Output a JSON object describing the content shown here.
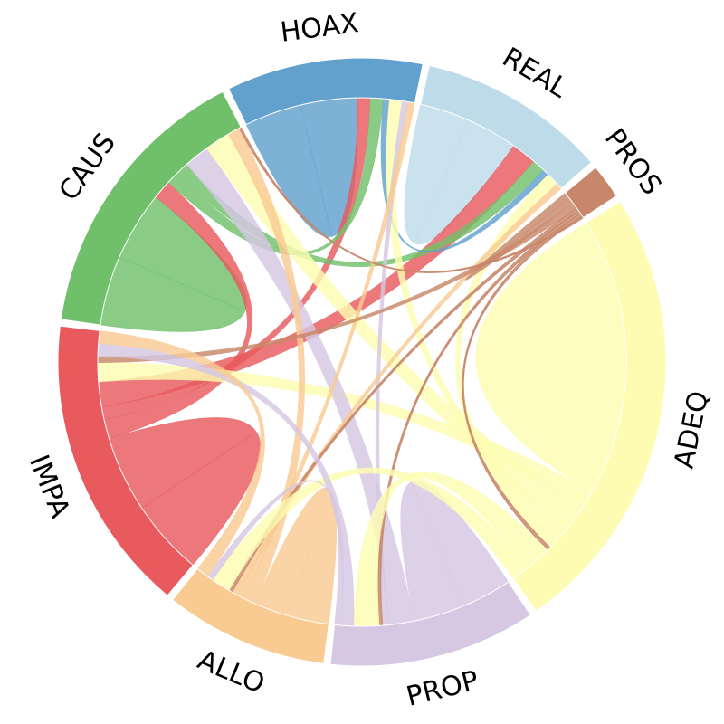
{
  "chart_data": {
    "type": "chord",
    "groups": [
      {
        "key": "CAUS",
        "label": "CAUS",
        "color": "#70bf6a"
      },
      {
        "key": "HOAX",
        "label": "HOAX",
        "color": "#62a0cd"
      },
      {
        "key": "REAL",
        "label": "REAL",
        "color": "#bedbea"
      },
      {
        "key": "PROS",
        "label": "PROS",
        "color": "#c8876a"
      },
      {
        "key": "ADEQ",
        "label": "ADEQ",
        "color": "#fefcb2"
      },
      {
        "key": "PROP",
        "label": "PROP",
        "color": "#d6c7e3"
      },
      {
        "key": "ALLO",
        "label": "ALLO",
        "color": "#f9cb92"
      },
      {
        "key": "IMPA",
        "label": "IMPA",
        "color": "#e85a5e"
      }
    ],
    "ribbons": [
      {
        "from": "CAUS",
        "to": "CAUS",
        "value": 11,
        "color": "#70bf6a"
      },
      {
        "from": "HOAX",
        "to": "HOAX",
        "value": 9,
        "color": "#62a0cd"
      },
      {
        "from": "REAL",
        "to": "REAL",
        "value": 8,
        "color": "#bedbea"
      },
      {
        "from": "ADEQ",
        "to": "ADEQ",
        "value": 22,
        "color": "#fefcb2"
      },
      {
        "from": "PROP",
        "to": "PROP",
        "value": 8,
        "color": "#d6c7e3"
      },
      {
        "from": "ALLO",
        "to": "ALLO",
        "value": 6,
        "color": "#f9cb92"
      },
      {
        "from": "IMPA",
        "to": "IMPA",
        "value": 12,
        "color": "#e85a5e"
      },
      {
        "from": "IMPA",
        "to": "CAUS",
        "value": 3,
        "color": "#e85a5e"
      },
      {
        "from": "IMPA",
        "to": "HOAX",
        "value": 2,
        "color": "#e85a5e"
      },
      {
        "from": "IMPA",
        "to": "REAL",
        "value": 4,
        "color": "#e85a5e"
      },
      {
        "from": "IMPA",
        "to": "ADEQ",
        "value": 3,
        "color": "#fefcb2"
      },
      {
        "from": "CAUS",
        "to": "HOAX",
        "value": 2,
        "color": "#70bf6a"
      },
      {
        "from": "CAUS",
        "to": "REAL",
        "value": 2,
        "color": "#70bf6a"
      },
      {
        "from": "CAUS",
        "to": "PROP",
        "value": 4,
        "color": "#d6c7e3"
      },
      {
        "from": "CAUS",
        "to": "ADEQ",
        "value": 4,
        "color": "#fefcb2"
      },
      {
        "from": "CAUS",
        "to": "ALLO",
        "value": 2,
        "color": "#f9cb92"
      },
      {
        "from": "HOAX",
        "to": "REAL",
        "value": 1,
        "color": "#62a0cd"
      },
      {
        "from": "HOAX",
        "to": "ADEQ",
        "value": 2,
        "color": "#fefcb2"
      },
      {
        "from": "HOAX",
        "to": "PROP",
        "value": 1,
        "color": "#d6c7e3"
      },
      {
        "from": "HOAX",
        "to": "ALLO",
        "value": 1,
        "color": "#f9cb92"
      },
      {
        "from": "REAL",
        "to": "ADEQ",
        "value": 2,
        "color": "#fefcb2"
      },
      {
        "from": "REAL",
        "to": "ALLO",
        "value": 1,
        "color": "#f9cb92"
      },
      {
        "from": "PROS",
        "to": "PROS",
        "value": 1,
        "color": "#c8876a"
      },
      {
        "from": "PROS",
        "to": "IMPA",
        "value": 1,
        "color": "#c8876a"
      },
      {
        "from": "PROS",
        "to": "ALLO",
        "value": 0.5,
        "color": "#c8876a"
      },
      {
        "from": "PROS",
        "to": "PROP",
        "value": 0.5,
        "color": "#c8876a"
      },
      {
        "from": "PROS",
        "to": "ADEQ",
        "value": 0.5,
        "color": "#c8876a"
      },
      {
        "from": "PROS",
        "to": "CAUS",
        "value": 0.3,
        "color": "#c8876a"
      },
      {
        "from": "ADEQ",
        "to": "PROP",
        "value": 4,
        "color": "#fefcb2"
      },
      {
        "from": "ADEQ",
        "to": "ALLO",
        "value": 3,
        "color": "#fefcb2"
      },
      {
        "from": "PROP",
        "to": "IMPA",
        "value": 2,
        "color": "#d6c7e3"
      },
      {
        "from": "PROP",
        "to": "ALLO",
        "value": 1,
        "color": "#d6c7e3"
      },
      {
        "from": "ALLO",
        "to": "IMPA",
        "value": 2,
        "color": "#f9cb92"
      }
    ]
  }
}
